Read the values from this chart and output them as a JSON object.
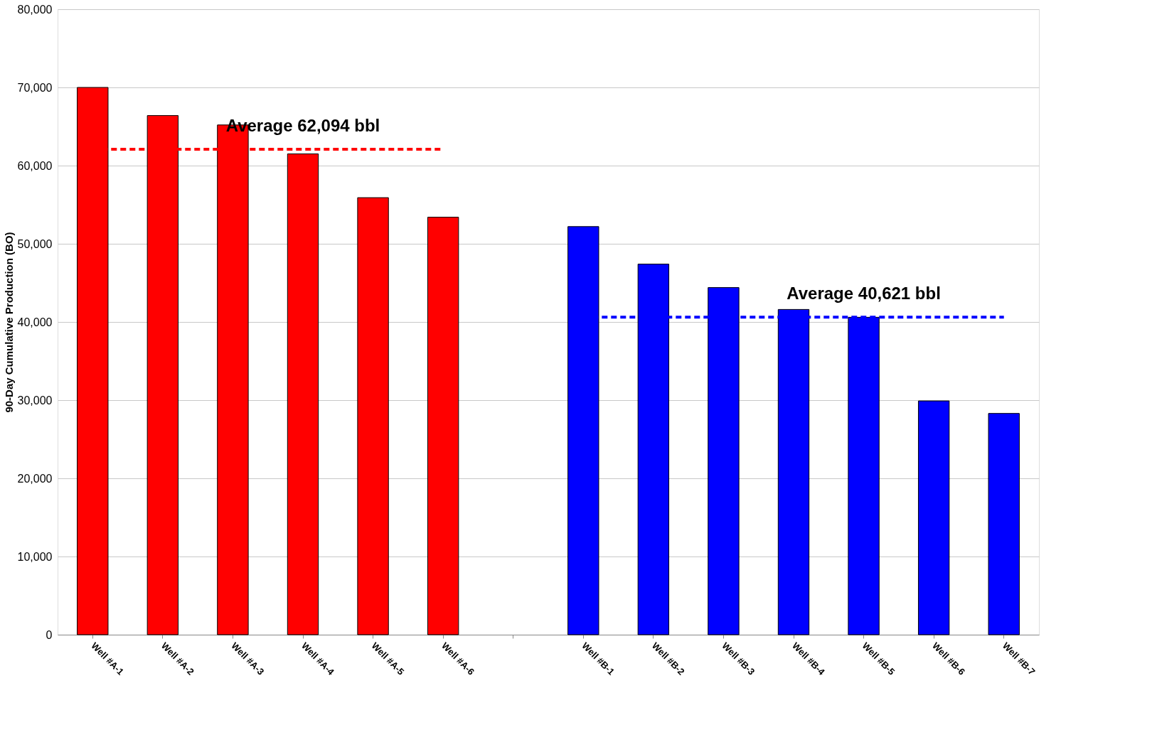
{
  "chart_data": {
    "type": "bar",
    "ylabel": "90-Day Cumulative Production (BO)",
    "categories": [
      "Well #A-1",
      "Well #A-2",
      "Well #A-3",
      "Well #A-4",
      "Well #A-5",
      "Well #A-6",
      null,
      "Well #B-1",
      "Well #B-2",
      "Well #B-3",
      "Well #B-4",
      "Well #B-5",
      "Well #B-6",
      "Well #B-7"
    ],
    "series": [
      {
        "color": "#ff0000",
        "values": [
          70000,
          66400,
          65200,
          61500,
          55900,
          53400,
          null,
          null,
          null,
          null,
          null,
          null,
          null,
          null
        ]
      },
      {
        "color": "#0000ff",
        "values": [
          null,
          null,
          null,
          null,
          null,
          null,
          null,
          52200,
          47400,
          44400,
          41600,
          40600,
          29900,
          28300
        ]
      }
    ],
    "ref_lines": [
      {
        "axis": "y",
        "value": 62094,
        "label": "Average 62,094 bbl",
        "color": "#ff0000",
        "line_style": "dashed"
      },
      {
        "axis": "y",
        "value": 40621,
        "label": "Average 40,621 bbl",
        "color": "#0000ff",
        "line_style": "dashed"
      }
    ],
    "ylim": [
      0,
      80000
    ],
    "yticks": [
      0,
      {
        "value": 10000,
        "label": "10,000"
      },
      {
        "value": 20000,
        "label": "20,000"
      },
      {
        "value": 30000,
        "label": "30,000"
      },
      {
        "value": 40000,
        "label": "40,000"
      },
      {
        "value": 50000,
        "label": "50,000"
      },
      {
        "value": 60000,
        "label": "60,000"
      },
      {
        "value": 70000,
        "label": "70,000"
      },
      {
        "value": 80000,
        "label": "80,000"
      }
    ],
    "grid": "y"
  }
}
